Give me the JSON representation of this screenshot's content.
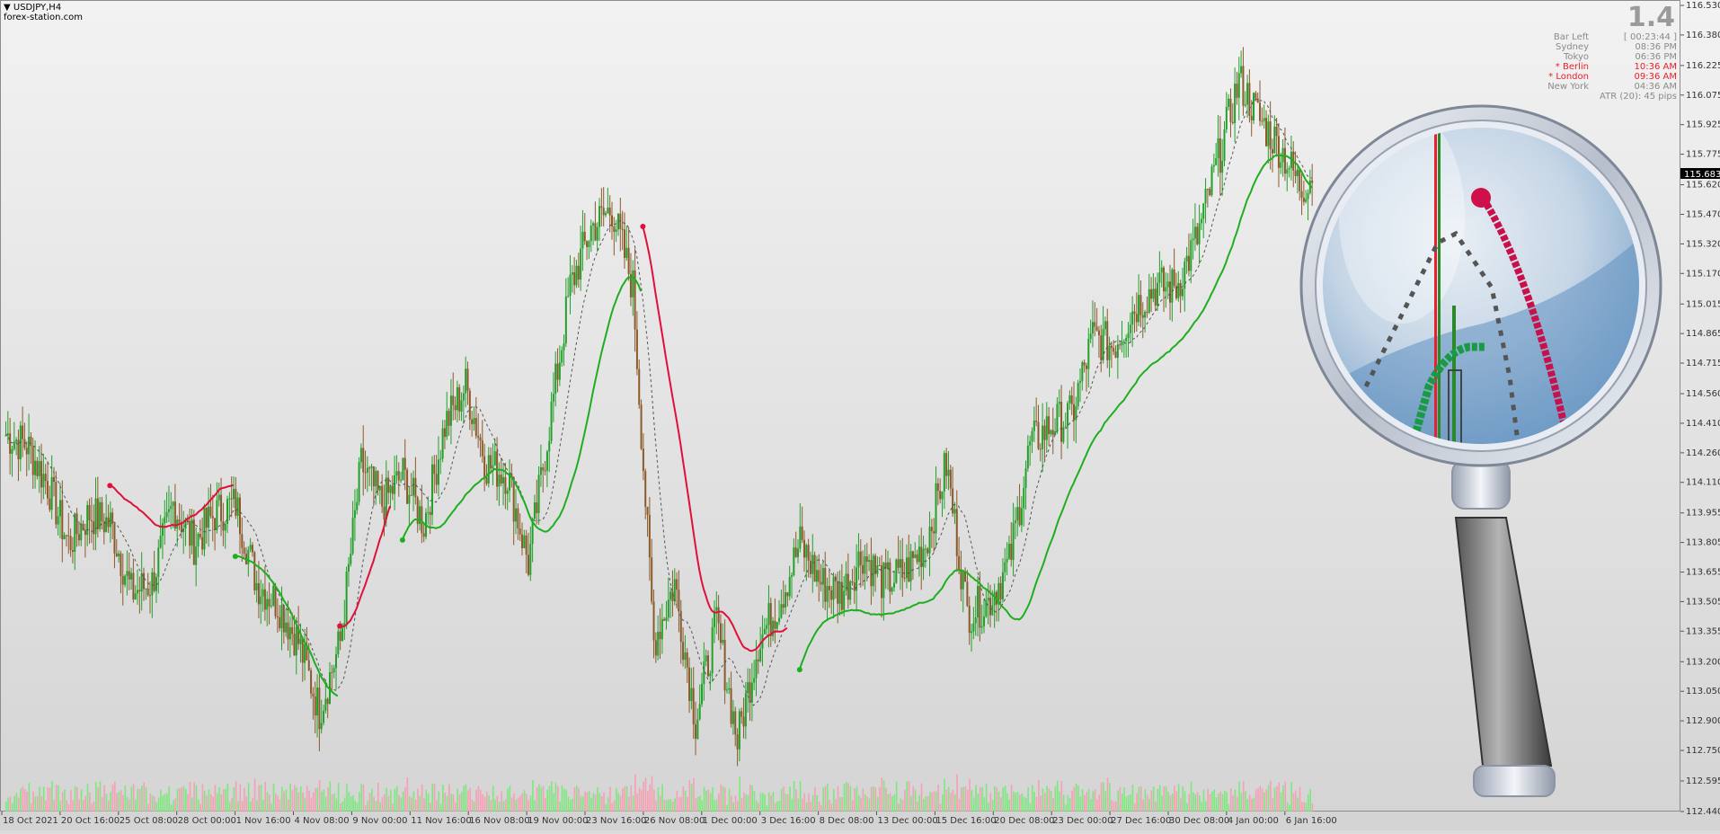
{
  "header": {
    "symbol_label": "USDJPY,H4",
    "watermark": "forex-station.com"
  },
  "info_panel": {
    "big_value": "1.4",
    "rows": [
      {
        "label": "Bar Left",
        "value": "[ 00:23:44 ]",
        "highlight": false
      },
      {
        "label": "Sydney",
        "value": "08:36 PM",
        "highlight": false
      },
      {
        "label": "Tokyo",
        "value": "06:36 PM",
        "highlight": false
      },
      {
        "label": "* Berlin",
        "value": "10:36 AM",
        "highlight": true
      },
      {
        "label": "* London",
        "value": "09:36 AM",
        "highlight": true
      },
      {
        "label": "New York",
        "value": "04:36 AM",
        "highlight": false
      }
    ],
    "atr": "ATR (20): 45 pips"
  },
  "colors": {
    "bull": "#22a02a",
    "bear": "#8b5a2b",
    "up_line": "#1fae1f",
    "down_line": "#e0103a",
    "vol_up": "#7ee87e",
    "vol_down": "#f5a0b4",
    "current_price_bg": "#000000"
  },
  "chart_data": {
    "type": "line",
    "title": "",
    "price_range": [
      112.44,
      116.53
    ],
    "y_ticks": [
      "116.530",
      "116.380",
      "116.225",
      "116.075",
      "115.925",
      "115.775",
      "115.620",
      "115.470",
      "115.320",
      "115.170",
      "115.015",
      "114.865",
      "114.715",
      "114.560",
      "114.410",
      "114.260",
      "114.110",
      "113.955",
      "113.805",
      "113.655",
      "113.505",
      "113.355",
      "113.200",
      "113.050",
      "112.900",
      "112.750",
      "112.595",
      "112.440"
    ],
    "current_price": "115.683",
    "x_ticks": [
      "18 Oct 2021",
      "20 Oct 16:00",
      "25 Oct 08:00",
      "28 Oct 00:00",
      "1 Nov 16:00",
      "4 Nov 08:00",
      "9 Nov 00:00",
      "11 Nov 16:00",
      "16 Nov 08:00",
      "19 Nov 00:00",
      "23 Nov 16:00",
      "26 Nov 08:00",
      "1 Dec 00:00",
      "3 Dec 16:00",
      "8 Dec 08:00",
      "13 Dec 00:00",
      "15 Dec 16:00",
      "20 Dec 08:00",
      "23 Dec 00:00",
      "27 Dec 16:00",
      "30 Dec 08:00",
      "4 Jan 00:00",
      "6 Jan 16:00"
    ],
    "close_anchors": [
      [
        0,
        114.35
      ],
      [
        10,
        114.3
      ],
      [
        20,
        114.1
      ],
      [
        30,
        113.8
      ],
      [
        40,
        113.95
      ],
      [
        50,
        113.9
      ],
      [
        60,
        113.55
      ],
      [
        70,
        113.6
      ],
      [
        80,
        114.0
      ],
      [
        90,
        113.8
      ],
      [
        100,
        113.95
      ],
      [
        110,
        114.0
      ],
      [
        120,
        113.6
      ],
      [
        130,
        113.5
      ],
      [
        140,
        113.3
      ],
      [
        150,
        112.95
      ],
      [
        160,
        113.3
      ],
      [
        170,
        114.2
      ],
      [
        180,
        114.0
      ],
      [
        190,
        114.15
      ],
      [
        200,
        113.9
      ],
      [
        210,
        114.4
      ],
      [
        220,
        114.6
      ],
      [
        230,
        114.2
      ],
      [
        240,
        114.15
      ],
      [
        250,
        113.7
      ],
      [
        260,
        114.4
      ],
      [
        270,
        115.1
      ],
      [
        280,
        115.4
      ],
      [
        290,
        115.5
      ],
      [
        300,
        115.1
      ],
      [
        310,
        113.3
      ],
      [
        320,
        113.6
      ],
      [
        330,
        112.9
      ],
      [
        340,
        113.4
      ],
      [
        350,
        112.8
      ],
      [
        360,
        113.3
      ],
      [
        370,
        113.5
      ],
      [
        380,
        113.8
      ],
      [
        390,
        113.6
      ],
      [
        400,
        113.55
      ],
      [
        410,
        113.75
      ],
      [
        420,
        113.6
      ],
      [
        430,
        113.65
      ],
      [
        440,
        113.8
      ],
      [
        450,
        114.2
      ],
      [
        460,
        113.45
      ],
      [
        470,
        113.5
      ],
      [
        480,
        113.7
      ],
      [
        490,
        114.3
      ],
      [
        500,
        114.4
      ],
      [
        510,
        114.45
      ],
      [
        520,
        114.85
      ],
      [
        530,
        114.8
      ],
      [
        540,
        115.0
      ],
      [
        550,
        115.1
      ],
      [
        560,
        115.1
      ],
      [
        570,
        115.35
      ],
      [
        580,
        115.75
      ],
      [
        590,
        116.15
      ],
      [
        600,
        115.95
      ],
      [
        610,
        115.8
      ],
      [
        620,
        115.6
      ],
      [
        625,
        115.68
      ]
    ],
    "trend_segments": [
      {
        "dir": "down",
        "start": 50,
        "end": 110
      },
      {
        "dir": "up",
        "start": 110,
        "end": 160
      },
      {
        "dir": "down",
        "start": 160,
        "end": 185
      },
      {
        "dir": "up",
        "start": 190,
        "end": 305
      },
      {
        "dir": "down",
        "start": 305,
        "end": 375
      },
      {
        "dir": "up",
        "start": 380,
        "end": 626
      }
    ]
  }
}
